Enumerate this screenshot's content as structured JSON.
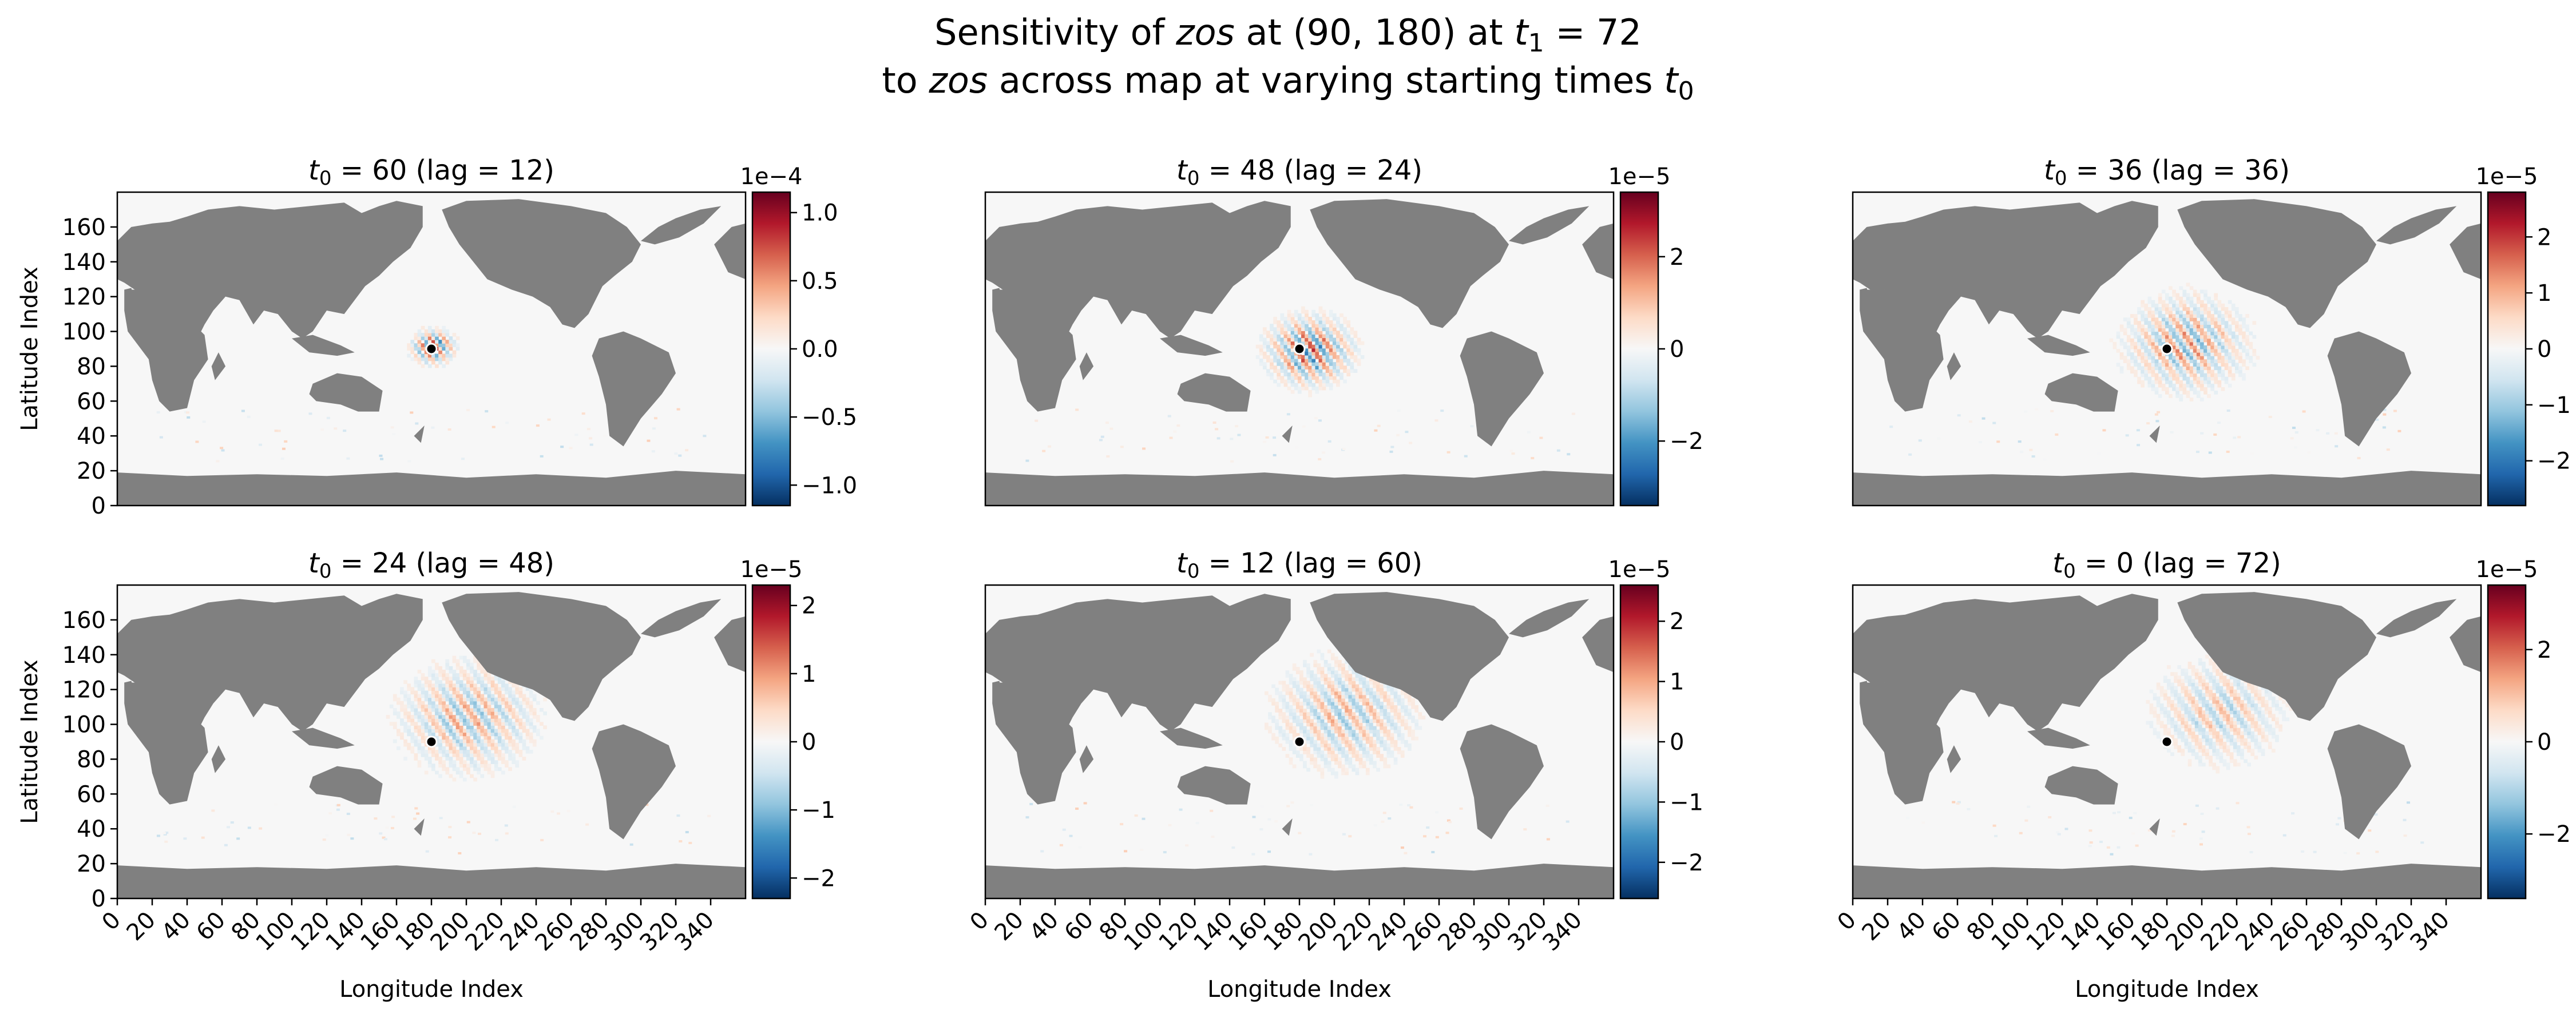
{
  "title": {
    "line1": {
      "pre": "Sensitivity of ",
      "it": "zos",
      "mid": " at (90, 180) at ",
      "sym": "t",
      "sub": "1",
      "post": " = 72"
    },
    "line2": {
      "pre": "to ",
      "it": "zos",
      "mid": " across map at varying starting times ",
      "sym": "t",
      "sub": "0"
    }
  },
  "colors": {
    "land": "#808080",
    "ocean": "#f7f7f7",
    "marker": "#000000",
    "cmap": [
      "#053061",
      "#2166ac",
      "#4393c3",
      "#92c5de",
      "#d1e5f0",
      "#f7f7f7",
      "#fddbc7",
      "#f4a582",
      "#d6604d",
      "#b2182b",
      "#67001f"
    ]
  },
  "chart_data": [
    {
      "type": "heatmap",
      "title": {
        "sym": "t",
        "sub": "0",
        "text": " = 60 (lag = 12)"
      },
      "xlabel": "",
      "ylabel": "Latitude Index",
      "xlim": [
        0,
        360
      ],
      "ylim": [
        0,
        180
      ],
      "xticks": [],
      "yticks": [
        "0",
        "20",
        "40",
        "60",
        "80",
        "100",
        "120",
        "140",
        "160"
      ],
      "marker": [
        180,
        90
      ],
      "colorbar": {
        "exponent": "1e−4",
        "vmin": -1.15,
        "vmax": 1.15,
        "ticks": [
          "−1.0",
          "−0.5",
          "0.0",
          "0.5",
          "1.0"
        ]
      },
      "pattern": {
        "center": [
          180,
          90
        ],
        "radius": 16,
        "amp": 0.9,
        "wave": 7
      }
    },
    {
      "type": "heatmap",
      "title": {
        "sym": "t",
        "sub": "0",
        "text": " = 48 (lag = 24)"
      },
      "xlabel": "",
      "ylabel": "",
      "xlim": [
        0,
        360
      ],
      "ylim": [
        0,
        180
      ],
      "xticks": [],
      "yticks": [],
      "marker": [
        180,
        90
      ],
      "colorbar": {
        "exponent": "1e−5",
        "vmin": -3.4,
        "vmax": 3.4,
        "ticks": [
          "−2",
          "0",
          "2"
        ]
      },
      "pattern": {
        "center": [
          185,
          88
        ],
        "radius": 32,
        "amp": 0.85,
        "wave": 9
      }
    },
    {
      "type": "heatmap",
      "title": {
        "sym": "t",
        "sub": "0",
        "text": " = 36 (lag = 36)"
      },
      "xlabel": "",
      "ylabel": "",
      "xlim": [
        0,
        360
      ],
      "ylim": [
        0,
        180
      ],
      "xticks": [],
      "yticks": [],
      "marker": [
        180,
        90
      ],
      "colorbar": {
        "exponent": "1e−5",
        "vmin": -2.8,
        "vmax": 2.8,
        "ticks": [
          "−2",
          "−1",
          "0",
          "1",
          "2"
        ]
      },
      "pattern": {
        "center": [
          190,
          92
        ],
        "radius": 45,
        "amp": 0.6,
        "wave": 10
      }
    },
    {
      "type": "heatmap",
      "title": {
        "sym": "t",
        "sub": "0",
        "text": " = 24 (lag = 48)"
      },
      "xlabel": "Longitude Index",
      "ylabel": "Latitude Index",
      "xlim": [
        0,
        360
      ],
      "ylim": [
        0,
        180
      ],
      "xticks": [
        "0",
        "20",
        "40",
        "60",
        "80",
        "100",
        "120",
        "140",
        "160",
        "180",
        "200",
        "220",
        "240",
        "260",
        "280",
        "300",
        "320",
        "340"
      ],
      "yticks": [
        "0",
        "20",
        "40",
        "60",
        "80",
        "100",
        "120",
        "140",
        "160"
      ],
      "marker": [
        180,
        90
      ],
      "colorbar": {
        "exponent": "1e−5",
        "vmin": -2.3,
        "vmax": 2.3,
        "ticks": [
          "−2",
          "−1",
          "0",
          "1",
          "2"
        ]
      },
      "pattern": {
        "center": [
          200,
          103
        ],
        "radius": 52,
        "amp": 0.5,
        "wave": 11
      }
    },
    {
      "type": "heatmap",
      "title": {
        "sym": "t",
        "sub": "0",
        "text": " = 12 (lag = 60)"
      },
      "xlabel": "Longitude Index",
      "ylabel": "",
      "xlim": [
        0,
        360
      ],
      "ylim": [
        0,
        180
      ],
      "xticks": [
        "0",
        "20",
        "40",
        "60",
        "80",
        "100",
        "120",
        "140",
        "160",
        "180",
        "200",
        "220",
        "240",
        "260",
        "280",
        "300",
        "320",
        "340"
      ],
      "yticks": [],
      "marker": [
        180,
        90
      ],
      "colorbar": {
        "exponent": "1e−5",
        "vmin": -2.6,
        "vmax": 2.6,
        "ticks": [
          "−2",
          "−1",
          "0",
          "1",
          "2"
        ]
      },
      "pattern": {
        "center": [
          205,
          105
        ],
        "radius": 55,
        "amp": 0.45,
        "wave": 12
      }
    },
    {
      "type": "heatmap",
      "title": {
        "sym": "t",
        "sub": "0",
        "text": " = 0 (lag = 72)"
      },
      "xlabel": "Longitude Index",
      "ylabel": "",
      "xlim": [
        0,
        360
      ],
      "ylim": [
        0,
        180
      ],
      "xticks": [
        "0",
        "20",
        "40",
        "60",
        "80",
        "100",
        "120",
        "140",
        "160",
        "180",
        "200",
        "220",
        "240",
        "260",
        "280",
        "300",
        "320",
        "340"
      ],
      "yticks": [],
      "marker": [
        180,
        90
      ],
      "colorbar": {
        "exponent": "1e−5",
        "vmin": -3.4,
        "vmax": 3.4,
        "ticks": [
          "−2",
          "0",
          "2"
        ]
      },
      "pattern": {
        "center": [
          208,
          106
        ],
        "radius": 50,
        "amp": 0.4,
        "wave": 12
      }
    }
  ]
}
